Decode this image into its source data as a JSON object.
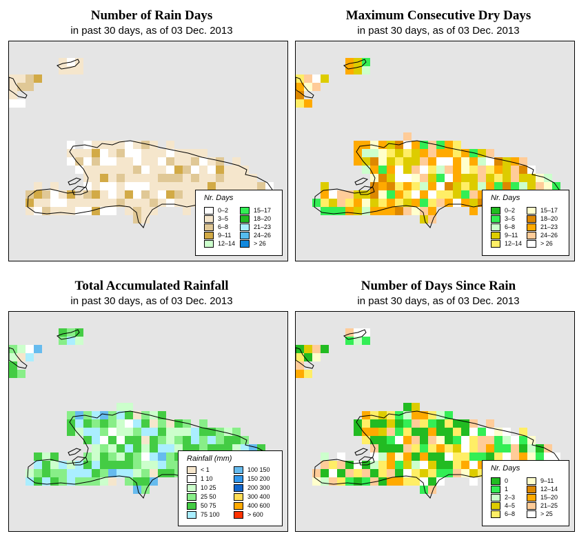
{
  "panels": [
    {
      "title": "Number of Rain Days",
      "subtitle": "in past 30 days, as of  03 Dec. 2013",
      "legend_title": "Nr. Days",
      "legend": [
        {
          "label": "0–2",
          "color": "#ffffff"
        },
        {
          "label": "3–5",
          "color": "#f5e6cc"
        },
        {
          "label": "6–8",
          "color": "#e0c896"
        },
        {
          "label": "9–11",
          "color": "#d2aa46"
        },
        {
          "label": "12–14",
          "color": "#ccffcc"
        },
        {
          "label": "15–17",
          "color": "#33ee55"
        },
        {
          "label": "18–20",
          "color": "#22bb22"
        },
        {
          "label": "21–23",
          "color": "#aaeeff"
        },
        {
          "label": "24–26",
          "color": "#55bbee"
        },
        {
          "label": "> 26",
          "color": "#1188dd"
        }
      ]
    },
    {
      "title": "Maximum Consecutive Dry Days",
      "subtitle": "in past 30 days, as of  03 Dec. 2013",
      "legend_title": "Nr. Days",
      "legend": [
        {
          "label": "0–2",
          "color": "#22bb22"
        },
        {
          "label": "3–5",
          "color": "#33ee55"
        },
        {
          "label": "6–8",
          "color": "#ccffcc"
        },
        {
          "label": "9–11",
          "color": "#ddcc00"
        },
        {
          "label": "12–14",
          "color": "#ffee66"
        },
        {
          "label": "15–17",
          "color": "#ffffcc"
        },
        {
          "label": "18–20",
          "color": "#dd8800"
        },
        {
          "label": "21–23",
          "color": "#ffaa00"
        },
        {
          "label": "24–26",
          "color": "#ffcc99"
        },
        {
          "label": "> 26",
          "color": "#ffffff"
        }
      ]
    },
    {
      "title": "Total Accumulated Rainfall",
      "subtitle": "in past 30 days, as of  03 Dec. 2013",
      "legend_title": "Rainfall (mm)",
      "legend": [
        {
          "label": "< 1",
          "color": "#f5e6cc"
        },
        {
          "label": "1   10",
          "color": "#ffffff"
        },
        {
          "label": "10   25",
          "color": "#ccffcc"
        },
        {
          "label": "25   50",
          "color": "#88ee88"
        },
        {
          "label": "50   75",
          "color": "#44cc44"
        },
        {
          "label": "75  100",
          "color": "#aaeeff"
        },
        {
          "label": "100  150",
          "color": "#66bbee"
        },
        {
          "label": "150  200",
          "color": "#3399ee"
        },
        {
          "label": "200  300",
          "color": "#1166cc"
        },
        {
          "label": "300  400",
          "color": "#ffdd55"
        },
        {
          "label": "400  600",
          "color": "#ffaa00"
        },
        {
          "label": "> 600",
          "color": "#ff3300"
        }
      ]
    },
    {
      "title": "Number of Days Since Rain",
      "subtitle": "in past 30 days, as of  03 Dec. 2013",
      "legend_title": "Nr. Days",
      "legend": [
        {
          "label": "0",
          "color": "#22bb22"
        },
        {
          "label": "1",
          "color": "#33ee55"
        },
        {
          "label": "2–3",
          "color": "#ccffcc"
        },
        {
          "label": "4–5",
          "color": "#ddcc00"
        },
        {
          "label": "6–8",
          "color": "#ffee66"
        },
        {
          "label": "9–11",
          "color": "#ffffcc"
        },
        {
          "label": "12–14",
          "color": "#dd8800"
        },
        {
          "label": "15–20",
          "color": "#ffaa00"
        },
        {
          "label": "21–25",
          "color": "#ffcc99"
        },
        {
          "label": "> 25",
          "color": "#ffffff"
        }
      ]
    }
  ]
}
